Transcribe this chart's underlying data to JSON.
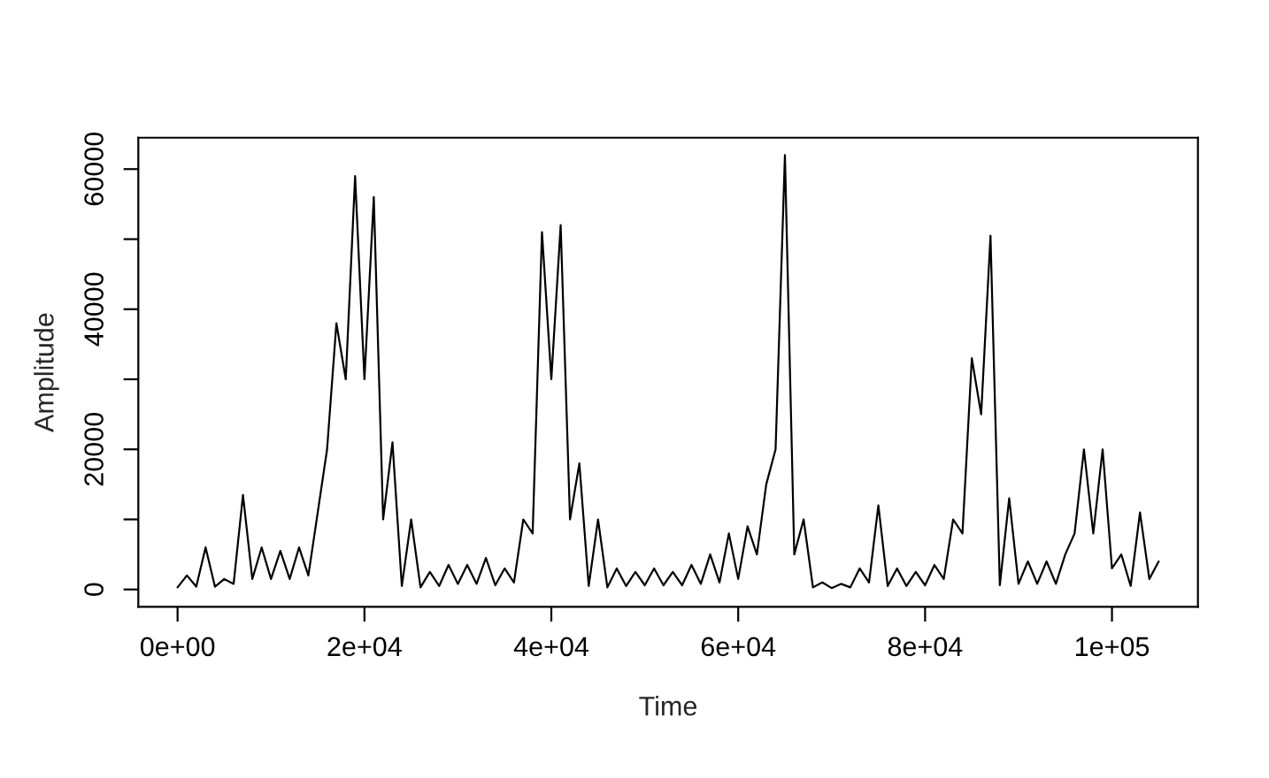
{
  "chart_data": {
    "type": "line",
    "xlabel": "Time",
    "ylabel": "Amplitude",
    "x": [
      0,
      1000,
      2000,
      3000,
      4000,
      5000,
      6000,
      7000,
      8000,
      9000,
      10000,
      11000,
      12000,
      13000,
      14000,
      15000,
      16000,
      17000,
      18000,
      19000,
      20000,
      21000,
      22000,
      23000,
      24000,
      25000,
      26000,
      27000,
      28000,
      29000,
      30000,
      31000,
      32000,
      33000,
      34000,
      35000,
      36000,
      37000,
      38000,
      39000,
      40000,
      41000,
      42000,
      43000,
      44000,
      45000,
      46000,
      47000,
      48000,
      49000,
      50000,
      51000,
      52000,
      53000,
      54000,
      55000,
      56000,
      57000,
      58000,
      59000,
      60000,
      61000,
      62000,
      63000,
      64000,
      65000,
      66000,
      67000,
      68000,
      69000,
      70000,
      71000,
      72000,
      73000,
      74000,
      75000,
      76000,
      77000,
      78000,
      79000,
      80000,
      81000,
      82000,
      83000,
      84000,
      85000,
      86000,
      87000,
      88000,
      89000,
      90000,
      91000,
      92000,
      93000,
      94000,
      95000,
      96000,
      97000,
      98000,
      99000,
      100000,
      101000,
      102000,
      103000,
      104000,
      105000
    ],
    "series": [
      {
        "color": "#000000",
        "values": [
          300,
          2000,
          400,
          6000,
          400,
          1500,
          800,
          13500,
          1500,
          6000,
          1500,
          5500,
          1500,
          6000,
          2000,
          11000,
          20000,
          38000,
          30000,
          59000,
          30000,
          56000,
          10000,
          21000,
          500,
          10000,
          300,
          2500,
          500,
          3500,
          800,
          3500,
          800,
          4500,
          600,
          3000,
          1000,
          10000,
          8000,
          51000,
          30000,
          52000,
          10000,
          18000,
          500,
          10000,
          300,
          3000,
          500,
          2500,
          600,
          3000,
          600,
          2500,
          600,
          3500,
          800,
          5000,
          1000,
          8000,
          1500,
          9000,
          5000,
          15000,
          20000,
          62000,
          5000,
          10000,
          300,
          1000,
          200,
          800,
          300,
          3000,
          1000,
          12000,
          500,
          3000,
          500,
          2500,
          600,
          3500,
          1500,
          10000,
          8000,
          33000,
          25000,
          50500,
          600,
          13000,
          800,
          4000,
          800,
          4000,
          800,
          5000,
          8000,
          20000,
          8000,
          20000,
          3000,
          5000,
          500,
          11000,
          1500,
          4000
        ]
      }
    ],
    "xlim": [
      -4200,
      109200
    ],
    "ylim": [
      -2480,
      64480
    ],
    "xticks": [
      {
        "value": 0,
        "label": "0e+00"
      },
      {
        "value": 20000,
        "label": "2e+04"
      },
      {
        "value": 40000,
        "label": "4e+04"
      },
      {
        "value": 60000,
        "label": "6e+04"
      },
      {
        "value": 80000,
        "label": "8e+04"
      },
      {
        "value": 100000,
        "label": "1e+05"
      }
    ],
    "yticks": [
      0,
      {
        "value": 10000,
        "label": null
      },
      20000,
      {
        "value": 30000,
        "label": null
      },
      40000,
      {
        "value": 50000,
        "label": null
      },
      60000
    ],
    "grid": false,
    "line_style": "solid",
    "marker": "none"
  }
}
